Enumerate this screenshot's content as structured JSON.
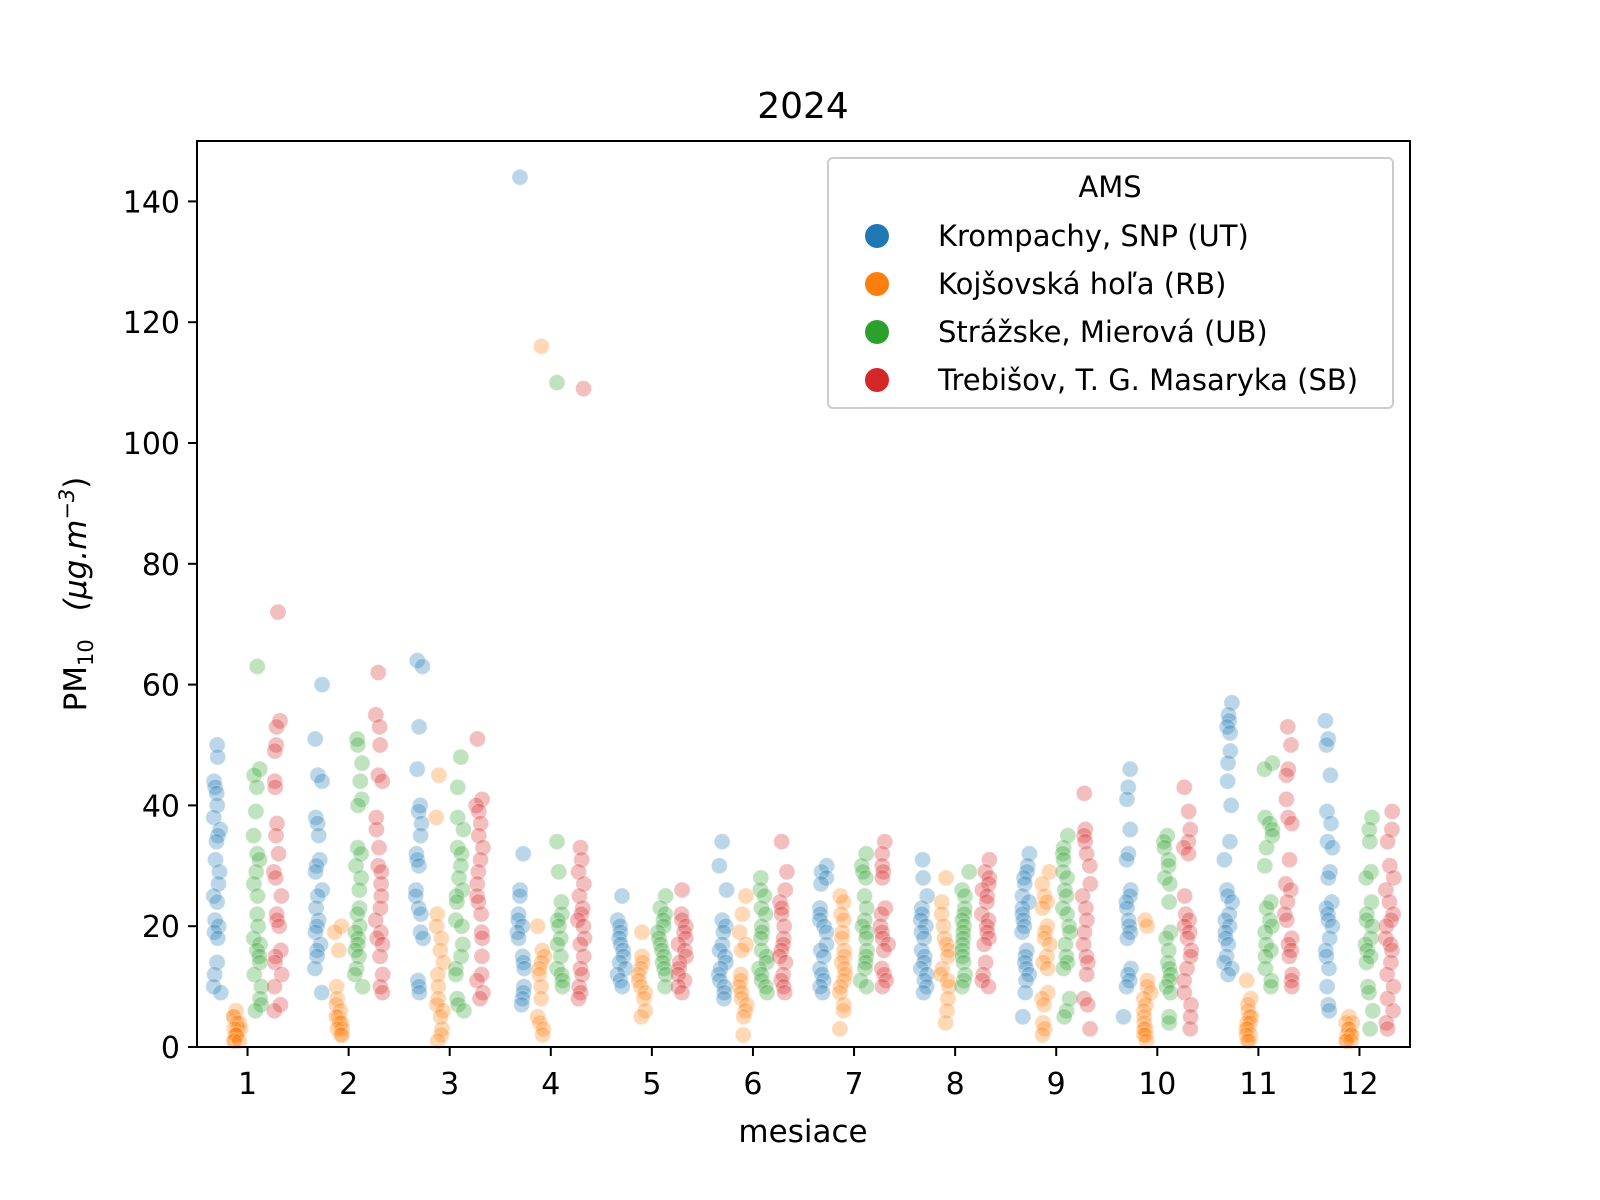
{
  "chart_data": {
    "type": "scatter",
    "subtype": "strip",
    "title": "2024",
    "xlabel": "mesiace",
    "ylabel": "PM",
    "ylabel_sub": "10",
    "ylabel_unit": "(μg.m",
    "ylabel_unit_sup": "−3",
    "ylabel_unit_close": ")",
    "xlim": [
      0.5,
      12.5
    ],
    "ylim": [
      0,
      150
    ],
    "grid": false,
    "x_ticks": [
      "1",
      "2",
      "3",
      "4",
      "5",
      "6",
      "7",
      "8",
      "9",
      "10",
      "11",
      "12"
    ],
    "y_ticks": [
      "0",
      "20",
      "40",
      "60",
      "80",
      "100",
      "120",
      "140"
    ],
    "legend": {
      "title": "AMS",
      "placement": "top-right"
    },
    "point_alpha": 0.3,
    "series": [
      {
        "name": "Krompachy, SNP (UT)",
        "color": "#1f77b4",
        "values": [
          [
            50,
            48,
            44,
            43,
            42,
            40,
            38,
            36,
            35,
            34,
            31,
            29,
            27,
            25,
            24,
            21,
            20,
            19,
            18,
            14,
            12,
            10,
            9
          ],
          [
            60,
            51,
            45,
            44,
            38,
            37,
            35,
            31,
            30,
            29,
            26,
            25,
            23,
            21,
            20,
            19,
            17,
            16,
            15,
            13,
            9
          ],
          [
            64,
            63,
            53,
            46,
            40,
            39,
            37,
            35,
            32,
            31,
            30,
            26,
            25,
            23,
            22,
            19,
            18,
            11,
            10,
            9
          ],
          [
            144,
            32,
            26,
            25,
            22,
            21,
            20,
            19,
            18,
            15,
            14,
            13,
            10,
            9,
            8,
            7
          ],
          [
            25,
            21,
            20,
            19,
            18,
            17,
            16,
            15,
            14,
            13,
            12,
            11,
            10
          ],
          [
            34,
            30,
            26,
            21,
            20,
            19,
            17,
            16,
            15,
            14,
            13,
            12,
            11,
            10,
            9,
            8
          ],
          [
            30,
            29,
            28,
            27,
            23,
            22,
            21,
            20,
            19,
            17,
            16,
            15,
            13,
            12,
            11,
            10,
            9
          ],
          [
            31,
            28,
            25,
            23,
            22,
            21,
            20,
            19,
            18,
            16,
            15,
            14,
            13,
            12,
            11,
            10,
            9
          ],
          [
            32,
            30,
            29,
            28,
            27,
            25,
            24,
            23,
            22,
            21,
            20,
            19,
            16,
            15,
            14,
            13,
            12,
            11,
            9,
            5
          ],
          [
            46,
            43,
            41,
            36,
            32,
            31,
            26,
            25,
            24,
            23,
            21,
            20,
            19,
            18,
            13,
            12,
            11,
            10,
            5
          ],
          [
            57,
            55,
            54,
            53,
            52,
            49,
            47,
            44,
            40,
            34,
            31,
            26,
            25,
            24,
            22,
            21,
            20,
            19,
            18,
            17,
            15,
            14,
            13,
            12
          ],
          [
            54,
            51,
            50,
            45,
            39,
            37,
            34,
            33,
            29,
            28,
            24,
            23,
            22,
            21,
            20,
            18,
            16,
            15,
            13,
            10,
            7,
            6
          ]
        ]
      },
      {
        "name": "Kojšovská hoľa (RB)",
        "color": "#ff7f0e",
        "values": [
          [
            6,
            5,
            5,
            4,
            4,
            3,
            3,
            3,
            2,
            2,
            2,
            1,
            1,
            1
          ],
          [
            20,
            19,
            16,
            10,
            8,
            7,
            6,
            5,
            5,
            4,
            4,
            3,
            3,
            2,
            2
          ],
          [
            45,
            38,
            22,
            20,
            18,
            16,
            14,
            12,
            10,
            8,
            7,
            6,
            5,
            3,
            2,
            1
          ],
          [
            116,
            20,
            16,
            15,
            14,
            13,
            12,
            10,
            8,
            5,
            4,
            3,
            2
          ],
          [
            19,
            15,
            14,
            13,
            12,
            11,
            10,
            9,
            8,
            6,
            5
          ],
          [
            25,
            22,
            19,
            17,
            16,
            12,
            11,
            10,
            9,
            8,
            7,
            6,
            5,
            2
          ],
          [
            25,
            24,
            22,
            21,
            19,
            18,
            16,
            15,
            14,
            13,
            12,
            11,
            10,
            9,
            7,
            6,
            3
          ],
          [
            28,
            24,
            22,
            20,
            18,
            17,
            16,
            15,
            13,
            12,
            11,
            10,
            8,
            6,
            4
          ],
          [
            29,
            27,
            25,
            24,
            23,
            20,
            19,
            18,
            17,
            15,
            14,
            13,
            9,
            8,
            7,
            4,
            3,
            2
          ],
          [
            21,
            20,
            11,
            10,
            9,
            8,
            7,
            6,
            5,
            4,
            3,
            3,
            2,
            2,
            1
          ],
          [
            11,
            8,
            7,
            6,
            5,
            5,
            4,
            4,
            3,
            3,
            2,
            2,
            1,
            1
          ],
          [
            5,
            4,
            4,
            3,
            3,
            2,
            2,
            2,
            1,
            1,
            1
          ]
        ]
      },
      {
        "name": "Strážske, Mierová (UB)",
        "color": "#2ca02c",
        "values": [
          [
            63,
            46,
            45,
            43,
            39,
            35,
            32,
            31,
            29,
            27,
            25,
            22,
            20,
            18,
            17,
            16,
            15,
            14,
            12,
            10,
            8,
            7,
            6
          ],
          [
            51,
            50,
            47,
            44,
            41,
            40,
            33,
            32,
            30,
            28,
            26,
            23,
            22,
            20,
            19,
            18,
            17,
            16,
            15,
            13,
            12,
            10
          ],
          [
            48,
            43,
            38,
            36,
            33,
            32,
            30,
            28,
            26,
            25,
            24,
            21,
            20,
            17,
            15,
            13,
            12,
            8,
            7,
            6
          ],
          [
            110,
            34,
            29,
            24,
            22,
            21,
            20,
            18,
            17,
            15,
            13,
            12,
            11,
            10
          ],
          [
            25,
            23,
            22,
            21,
            20,
            19,
            18,
            17,
            16,
            15,
            14,
            13,
            12,
            10
          ],
          [
            28,
            26,
            25,
            23,
            22,
            20,
            19,
            18,
            16,
            15,
            14,
            13,
            12,
            11,
            10,
            9
          ],
          [
            32,
            30,
            29,
            28,
            25,
            23,
            21,
            20,
            19,
            18,
            16,
            15,
            14,
            13,
            11,
            10
          ],
          [
            29,
            26,
            25,
            23,
            22,
            21,
            20,
            19,
            18,
            17,
            16,
            15,
            14,
            12,
            11,
            10
          ],
          [
            35,
            33,
            32,
            31,
            29,
            28,
            26,
            25,
            23,
            22,
            20,
            19,
            17,
            15,
            14,
            13,
            8,
            6,
            5
          ],
          [
            35,
            34,
            33,
            31,
            30,
            28,
            27,
            24,
            19,
            18,
            16,
            14,
            13,
            12,
            11,
            10,
            9,
            5,
            4
          ],
          [
            47,
            46,
            38,
            37,
            36,
            35,
            33,
            30,
            24,
            23,
            21,
            20,
            19,
            17,
            16,
            15,
            13,
            11,
            10
          ],
          [
            38,
            36,
            34,
            29,
            28,
            24,
            22,
            21,
            20,
            18,
            17,
            16,
            15,
            14,
            10,
            9,
            6,
            3
          ]
        ]
      },
      {
        "name": "Trebišov, T. G. Masaryka (SB)",
        "color": "#d62728",
        "values": [
          [
            72,
            54,
            53,
            50,
            49,
            44,
            43,
            37,
            35,
            32,
            29,
            28,
            25,
            22,
            21,
            20,
            16,
            15,
            14,
            12,
            10,
            7,
            6
          ],
          [
            62,
            55,
            53,
            50,
            45,
            44,
            38,
            36,
            33,
            30,
            29,
            27,
            25,
            23,
            21,
            19,
            18,
            17,
            15,
            12,
            10,
            9
          ],
          [
            51,
            41,
            40,
            39,
            37,
            35,
            33,
            31,
            29,
            27,
            25,
            24,
            22,
            19,
            18,
            15,
            12,
            11,
            9,
            8
          ],
          [
            109,
            33,
            31,
            29,
            27,
            25,
            23,
            22,
            21,
            20,
            18,
            17,
            15,
            13,
            12,
            10,
            9,
            8
          ],
          [
            26,
            22,
            21,
            20,
            19,
            18,
            17,
            16,
            15,
            14,
            13,
            12,
            11,
            10,
            9
          ],
          [
            34,
            29,
            26,
            24,
            23,
            22,
            20,
            18,
            17,
            16,
            15,
            14,
            12,
            11,
            10,
            9
          ],
          [
            34,
            32,
            30,
            29,
            28,
            23,
            22,
            20,
            19,
            18,
            17,
            16,
            13,
            12,
            11,
            10
          ],
          [
            31,
            29,
            28,
            27,
            26,
            25,
            24,
            22,
            21,
            20,
            19,
            18,
            17,
            14,
            12,
            11,
            10
          ],
          [
            42,
            36,
            35,
            34,
            32,
            30,
            27,
            25,
            23,
            21,
            19,
            17,
            15,
            14,
            12,
            8,
            7,
            3
          ],
          [
            43,
            39,
            36,
            34,
            33,
            32,
            25,
            22,
            21,
            20,
            19,
            18,
            16,
            15,
            13,
            11,
            9,
            7,
            5,
            3
          ],
          [
            53,
            50,
            46,
            45,
            41,
            38,
            37,
            31,
            27,
            26,
            24,
            22,
            21,
            18,
            17,
            16,
            15,
            12,
            11,
            10
          ],
          [
            39,
            36,
            34,
            30,
            28,
            26,
            24,
            22,
            21,
            20,
            18,
            17,
            16,
            14,
            12,
            10,
            8,
            6,
            4,
            3
          ]
        ]
      }
    ]
  }
}
